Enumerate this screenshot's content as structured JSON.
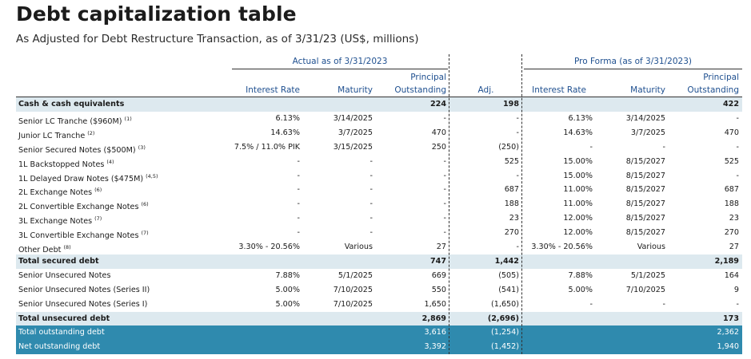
{
  "title": "Debt capitalization table",
  "subtitle": "As Adjusted for Debt Restructure Transaction, as of 3/31/23 (US$, millions)",
  "groups": {
    "actual": "Actual as of 3/31/2023",
    "proforma": "Pro Forma (as of 3/31/2023)"
  },
  "headers": {
    "interest_rate": "Interest Rate",
    "maturity": "Maturity",
    "principal_line1": "Principal",
    "principal_line2": "Outstanding",
    "adj": "Adj.",
    "pf_interest_rate": "Interest Rate",
    "pf_maturity": "Maturity",
    "pf_principal_line1": "Principal",
    "pf_principal_line2": "Outstanding"
  },
  "rows": [
    {
      "label": "Cash & cash equivalents",
      "note": "",
      "rate": "",
      "maturity": "",
      "principal": "224",
      "adj": "198",
      "pf_rate": "",
      "pf_maturity": "",
      "pf_principal": "422"
    },
    {
      "label": "Senior LC Tranche ($960M)",
      "note": "(1)",
      "rate": "6.13%",
      "maturity": "3/14/2025",
      "principal": "-",
      "adj": "-",
      "pf_rate": "6.13%",
      "pf_maturity": "3/14/2025",
      "pf_principal": "-"
    },
    {
      "label": "Junior LC Tranche",
      "note": "(2)",
      "rate": "14.63%",
      "maturity": "3/7/2025",
      "principal": "470",
      "adj": "-",
      "pf_rate": "14.63%",
      "pf_maturity": "3/7/2025",
      "pf_principal": "470"
    },
    {
      "label": "Senior Secured Notes ($500M)",
      "note": "(3)",
      "rate": "7.5% / 11.0% PIK",
      "maturity": "3/15/2025",
      "principal": "250",
      "adj": "(250)",
      "pf_rate": "-",
      "pf_maturity": "-",
      "pf_principal": "-"
    },
    {
      "label": "1L Backstopped Notes",
      "note": "(4)",
      "rate": "-",
      "maturity": "-",
      "principal": "-",
      "adj": "525",
      "pf_rate": "15.00%",
      "pf_maturity": "8/15/2027",
      "pf_principal": "525"
    },
    {
      "label": "1L Delayed Draw Notes ($475M)",
      "note": "(4,5)",
      "rate": "-",
      "maturity": "-",
      "principal": "-",
      "adj": "-",
      "pf_rate": "15.00%",
      "pf_maturity": "8/15/2027",
      "pf_principal": "-"
    },
    {
      "label": "2L Exchange Notes",
      "note": "(6)",
      "rate": "-",
      "maturity": "-",
      "principal": "-",
      "adj": "687",
      "pf_rate": "11.00%",
      "pf_maturity": "8/15/2027",
      "pf_principal": "687"
    },
    {
      "label": "2L Convertible Exchange Notes",
      "note": "(6)",
      "rate": "-",
      "maturity": "-",
      "principal": "-",
      "adj": "188",
      "pf_rate": "11.00%",
      "pf_maturity": "8/15/2027",
      "pf_principal": "188"
    },
    {
      "label": "3L Exchange Notes",
      "note": "(7)",
      "rate": "-",
      "maturity": "-",
      "principal": "-",
      "adj": "23",
      "pf_rate": "12.00%",
      "pf_maturity": "8/15/2027",
      "pf_principal": "23"
    },
    {
      "label": "3L Convertible Exchange Notes",
      "note": "(7)",
      "rate": "-",
      "maturity": "-",
      "principal": "-",
      "adj": "270",
      "pf_rate": "12.00%",
      "pf_maturity": "8/15/2027",
      "pf_principal": "270"
    },
    {
      "label": "Other Debt",
      "note": "(8)",
      "rate": "3.30% - 20.56%",
      "maturity": "Various",
      "principal": "27",
      "adj": "-",
      "pf_rate": "3.30% - 20.56%",
      "pf_maturity": "Various",
      "pf_principal": "27"
    },
    {
      "label": "Total secured debt",
      "note": "",
      "rate": "",
      "maturity": "",
      "principal": "747",
      "adj": "1,442",
      "pf_rate": "",
      "pf_maturity": "",
      "pf_principal": "2,189"
    },
    {
      "label": "Senior Unsecured Notes",
      "note": "",
      "rate": "7.88%",
      "maturity": "5/1/2025",
      "principal": "669",
      "adj": "(505)",
      "pf_rate": "7.88%",
      "pf_maturity": "5/1/2025",
      "pf_principal": "164"
    },
    {
      "label": "Senior Unsecured Notes (Series II)",
      "note": "",
      "rate": "5.00%",
      "maturity": "7/10/2025",
      "principal": "550",
      "adj": "(541)",
      "pf_rate": "5.00%",
      "pf_maturity": "7/10/2025",
      "pf_principal": "9"
    },
    {
      "label": "Senior Unsecured Notes (Series I)",
      "note": "",
      "rate": "5.00%",
      "maturity": "7/10/2025",
      "principal": "1,650",
      "adj": "(1,650)",
      "pf_rate": "-",
      "pf_maturity": "-",
      "pf_principal": "-"
    },
    {
      "label": "Total unsecured debt",
      "note": "",
      "rate": "",
      "maturity": "",
      "principal": "2,869",
      "adj": "(2,696)",
      "pf_rate": "",
      "pf_maturity": "",
      "pf_principal": "173"
    },
    {
      "label": "Total outstanding debt",
      "note": "",
      "rate": "",
      "maturity": "",
      "principal": "3,616",
      "adj": "(1,254)",
      "pf_rate": "",
      "pf_maturity": "",
      "pf_principal": "2,362"
    },
    {
      "label": "Net outstanding debt",
      "note": "",
      "rate": "",
      "maturity": "",
      "principal": "3,392",
      "adj": "(1,452)",
      "pf_rate": "",
      "pf_maturity": "",
      "pf_principal": "1,940"
    }
  ],
  "colors": {
    "header_blue": "#1e4f8f",
    "band": "#dde9ef",
    "teal": "#2f8aae"
  }
}
